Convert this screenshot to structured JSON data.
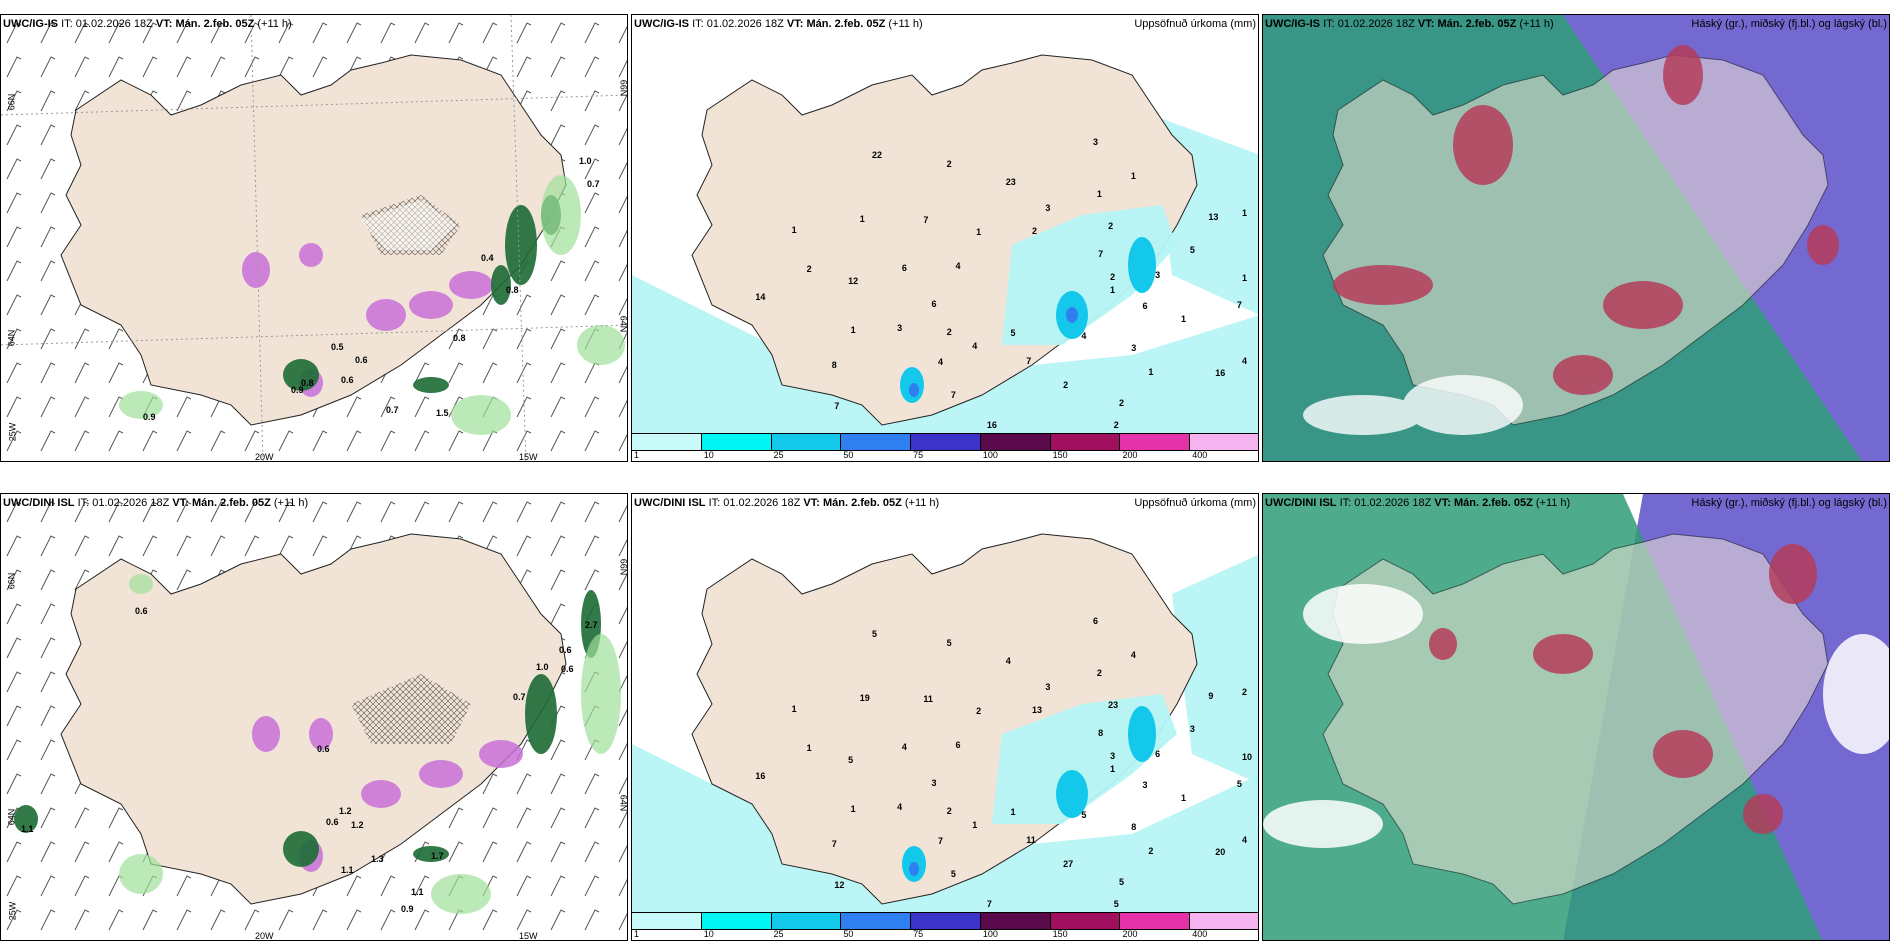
{
  "rows": [
    {
      "model": "UWC/IG-IS",
      "valid_prefix": "VT:",
      "valid": "Mán. 2.feb. 05Z",
      "init_prefix": "IT:",
      "init": "01.02.2026 18Z",
      "lead": "(+11 h)",
      "wind_panel": {
        "labels": [
          "0.5",
          "0.6",
          "0.6",
          "0.9",
          "0.9",
          "0.7",
          "1.5",
          "0.8",
          "0.8",
          "0.4",
          "1.0",
          "0.7",
          "0.8"
        ],
        "lat_labels": [
          "66N",
          "64N",
          "25W"
        ],
        "lon_labels": [
          "20W",
          "15W"
        ],
        "right_lat": [
          "66N",
          "64N"
        ]
      },
      "precip_panel": {
        "title": "Uppsöfnuð úrkoma (mm)",
        "numbers": [
          "1",
          "2",
          "3",
          "1",
          "2",
          "1",
          "5",
          "1",
          "1",
          "1",
          "1",
          "2",
          "4",
          "3",
          "4",
          "23",
          "16",
          "14",
          "7",
          "7",
          "7",
          "7",
          "8",
          "3",
          "4",
          "6",
          "5",
          "7",
          "2",
          "4",
          "6",
          "2",
          "2",
          "1",
          "1",
          "7",
          "2",
          "3",
          "12",
          "13",
          "16",
          "22",
          "6",
          "3",
          "1",
          "2",
          "1",
          "2",
          "4"
        ]
      },
      "cloud_panel": {
        "title": "Háský (gr.), miðský (fj.bl.) og lágský (bl.)"
      }
    },
    {
      "model": "UWC/DINI ISL",
      "valid_prefix": "VT:",
      "valid": "Mán. 2.feb. 05Z",
      "init_prefix": "IT:",
      "init": "01.02.2026 18Z",
      "lead": "(+11 h)",
      "wind_panel": {
        "labels": [
          "0.6",
          "1.1",
          "0.6",
          "0.6",
          "1.2",
          "1.2",
          "1.1",
          "1.7",
          "1.1",
          "0.9",
          "0.7",
          "0.6",
          "2.7",
          "0.6",
          "1.0",
          "1.3"
        ],
        "lat_labels": [
          "66N",
          "64N",
          "25W"
        ],
        "lon_labels": [
          "20W",
          "15W"
        ],
        "right_lat": [
          "66N",
          "64N"
        ]
      },
      "precip_panel": {
        "title": "Uppsöfnuð úrkoma (mm)",
        "numbers": [
          "1",
          "2",
          "3",
          "2",
          "1",
          "2",
          "1",
          "2",
          "1",
          "1",
          "4",
          "5",
          "6",
          "6",
          "7",
          "4",
          "20",
          "16",
          "8",
          "11",
          "11",
          "5",
          "7",
          "6",
          "5",
          "4",
          "3",
          "5",
          "5",
          "4",
          "3",
          "23",
          "27",
          "19",
          "10",
          "12",
          "13",
          "8",
          "5",
          "9",
          "7",
          "5",
          "3",
          "4",
          "2",
          "5",
          "1",
          "3",
          "1"
        ]
      },
      "cloud_panel": {
        "title": "Háský (gr.), miðský (fj.bl.) og lágský (bl.)"
      }
    }
  ],
  "colorbar": {
    "ticks": [
      "1",
      "10",
      "25",
      "50",
      "75",
      "100",
      "150",
      "200",
      "400"
    ],
    "colors": [
      "#c8fafa",
      "#00f5f5",
      "#14c8ec",
      "#2f7ff0",
      "#3c33c8",
      "#5a0a4a",
      "#a0105e",
      "#e632a8",
      "#f5b4f0"
    ]
  },
  "colors": {
    "land": "#f1e4d6",
    "sea": "#ffffff",
    "precip_light": "#b4f4f4",
    "cloud_high": "#2f9e78",
    "cloud_mid": "#5a4fc8",
    "cloud_low": "#b43c5a"
  }
}
